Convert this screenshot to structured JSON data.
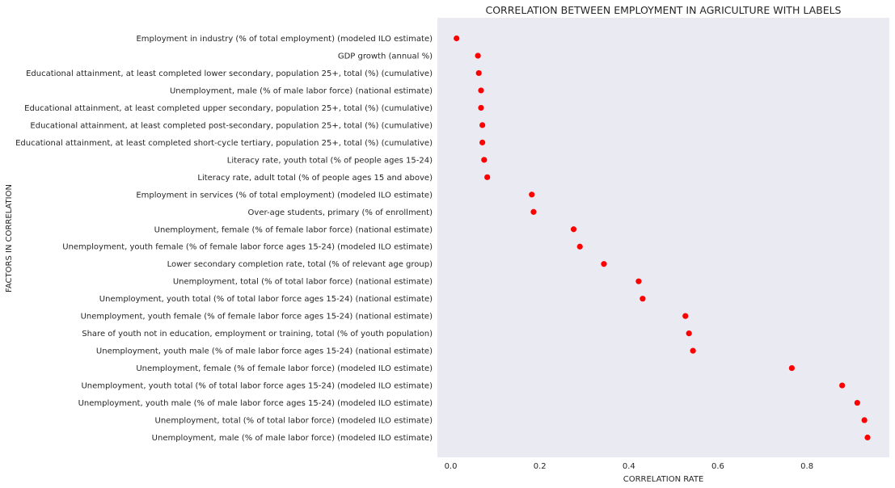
{
  "chart_data": {
    "type": "scatter",
    "title": "CORRELATION BETWEEN EMPLOYMENT IN AGRICULTURE WITH LABELS",
    "xlabel": "CORRELATION RATE",
    "ylabel": "FACTORS IN CORRELATION",
    "xlim": [
      -0.03,
      0.985
    ],
    "xticks": [
      0.0,
      0.2,
      0.4,
      0.6,
      0.8
    ],
    "xtick_labels": [
      "0.0",
      "0.2",
      "0.4",
      "0.6",
      "0.8"
    ],
    "grid": false,
    "marker_color": "#ff0000",
    "plot_background": "#eaeaf2",
    "points": [
      {
        "label": "Employment in industry (% of total employment) (modeled ILO estimate)",
        "value": 0.013
      },
      {
        "label": "GDP growth (annual %)",
        "value": 0.061
      },
      {
        "label": "Educational attainment, at least completed lower secondary, population 25+, total (%) (cumulative)",
        "value": 0.063
      },
      {
        "label": "Unemployment, male (% of male labor force) (national estimate)",
        "value": 0.068
      },
      {
        "label": "Educational attainment, at least completed upper secondary, population 25+, total (%) (cumulative)",
        "value": 0.068
      },
      {
        "label": "Educational attainment, at least completed post-secondary, population 25+, total (%) (cumulative)",
        "value": 0.071
      },
      {
        "label": "Educational attainment, at least completed short-cycle tertiary, population 25+, total (%) (cumulative)",
        "value": 0.071
      },
      {
        "label": "Literacy rate, youth total (% of people ages 15-24)",
        "value": 0.075
      },
      {
        "label": "Literacy rate, adult total (% of people ages 15 and above)",
        "value": 0.082
      },
      {
        "label": "Employment in services (% of total employment) (modeled ILO estimate)",
        "value": 0.182
      },
      {
        "label": "Over-age students, primary (% of enrollment)",
        "value": 0.186
      },
      {
        "label": "Unemployment, female (% of female labor force) (national estimate)",
        "value": 0.276
      },
      {
        "label": "Unemployment, youth female (% of female labor force ages 15-24) (modeled ILO estimate)",
        "value": 0.29
      },
      {
        "label": "Lower secondary completion rate, total (% of relevant age group)",
        "value": 0.344
      },
      {
        "label": "Unemployment, total (% of total labor force) (national estimate)",
        "value": 0.422
      },
      {
        "label": "Unemployment, youth total (% of total labor force ages 15-24) (national estimate)",
        "value": 0.431
      },
      {
        "label": "Unemployment, youth female (% of female labor force ages 15-24) (national estimate)",
        "value": 0.527
      },
      {
        "label": "Share of youth not in education, employment or training, total (% of youth population)",
        "value": 0.535
      },
      {
        "label": "Unemployment, youth male (% of male labor force ages 15-24) (national estimate)",
        "value": 0.544
      },
      {
        "label": "Unemployment, female (% of female labor force) (modeled ILO estimate)",
        "value": 0.766
      },
      {
        "label": "Unemployment, youth total (% of total labor force ages 15-24) (modeled ILO estimate)",
        "value": 0.879
      },
      {
        "label": "Unemployment, youth male (% of male labor force ages 15-24) (modeled ILO estimate)",
        "value": 0.913
      },
      {
        "label": "Unemployment, total (% of total labor force) (modeled ILO estimate)",
        "value": 0.929
      },
      {
        "label": "Unemployment, male (% of male labor force) (modeled ILO estimate)",
        "value": 0.936
      }
    ]
  }
}
